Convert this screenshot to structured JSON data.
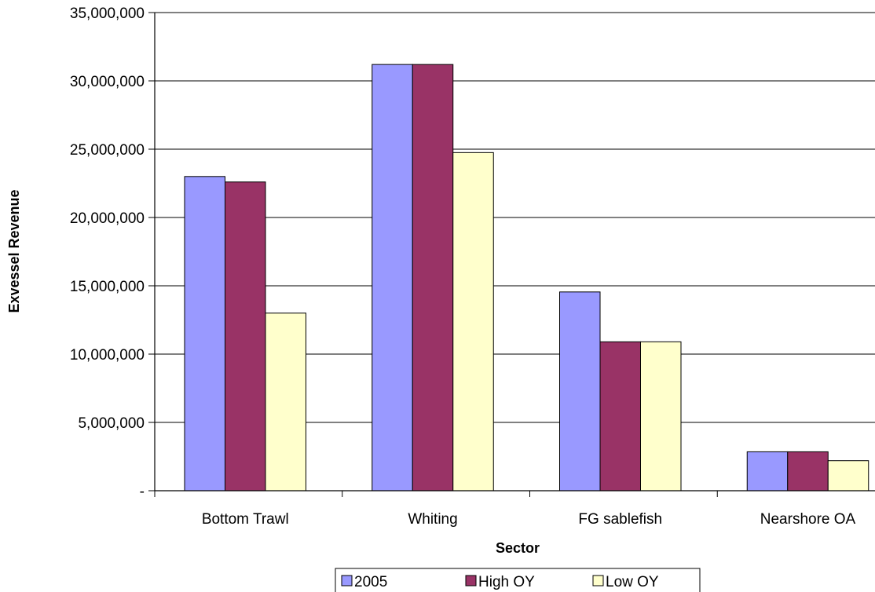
{
  "chart_data": {
    "type": "bar",
    "title": "",
    "xlabel": "Sector",
    "ylabel": "Exvessel Revenue",
    "categories": [
      "Bottom Trawl",
      "Whiting",
      "FG sablefish",
      "Nearshore OA"
    ],
    "series": [
      {
        "name": "2005",
        "color": "#9999ff",
        "values": [
          23000000,
          31200000,
          14550000,
          2850000
        ]
      },
      {
        "name": "High OY",
        "color": "#993366",
        "values": [
          22600000,
          31200000,
          10900000,
          2850000
        ]
      },
      {
        "name": "Low OY",
        "color": "#ffffcc",
        "values": [
          13000000,
          24750000,
          10900000,
          2200000
        ]
      }
    ],
    "ylim": [
      0,
      35000000
    ],
    "yticks": [
      {
        "value": 0,
        "label": "-"
      },
      {
        "value": 5000000,
        "label": "5,000,000"
      },
      {
        "value": 10000000,
        "label": "10,000,000"
      },
      {
        "value": 15000000,
        "label": "15,000,000"
      },
      {
        "value": 20000000,
        "label": "20,000,000"
      },
      {
        "value": 25000000,
        "label": "25,000,000"
      },
      {
        "value": 30000000,
        "label": "30,000,000"
      },
      {
        "value": 35000000,
        "label": "35,000,000"
      }
    ],
    "grid": true,
    "legend_position": "bottom"
  }
}
